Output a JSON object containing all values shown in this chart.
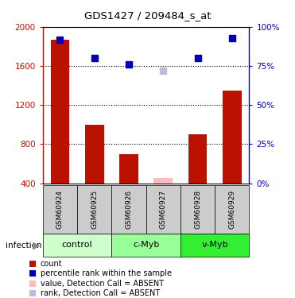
{
  "title": "GDS1427 / 209484_s_at",
  "samples": [
    "GSM60924",
    "GSM60925",
    "GSM60926",
    "GSM60927",
    "GSM60928",
    "GSM60929"
  ],
  "counts": [
    1870,
    1000,
    700,
    null,
    900,
    1350
  ],
  "counts_absent": [
    null,
    null,
    null,
    450,
    null,
    null
  ],
  "percentile": [
    92,
    80,
    76,
    null,
    80,
    93
  ],
  "percentile_absent": [
    null,
    null,
    null,
    72,
    null,
    null
  ],
  "ylim_left": [
    400,
    2000
  ],
  "ylim_right": [
    0,
    100
  ],
  "yticks_left": [
    400,
    800,
    1200,
    1600,
    2000
  ],
  "yticks_right": [
    0,
    25,
    50,
    75,
    100
  ],
  "bar_color": "#bb1100",
  "bar_absent_color": "#ffbbbb",
  "dot_color": "#0000bb",
  "dot_absent_color": "#bbbbdd",
  "groups": [
    {
      "label": "control",
      "samples": [
        "GSM60924",
        "GSM60925"
      ],
      "color": "#ccffcc"
    },
    {
      "label": "c-Myb",
      "samples": [
        "GSM60926",
        "GSM60927"
      ],
      "color": "#99ff99"
    },
    {
      "label": "v-Myb",
      "samples": [
        "GSM60928",
        "GSM60929"
      ],
      "color": "#33ee33"
    }
  ],
  "group_row_color": "#cccccc",
  "infection_label": "infection",
  "legend_items": [
    {
      "color": "#bb1100",
      "label": "count"
    },
    {
      "color": "#0000bb",
      "label": "percentile rank within the sample"
    },
    {
      "color": "#ffbbbb",
      "label": "value, Detection Call = ABSENT"
    },
    {
      "color": "#bbbbdd",
      "label": "rank, Detection Call = ABSENT"
    }
  ]
}
